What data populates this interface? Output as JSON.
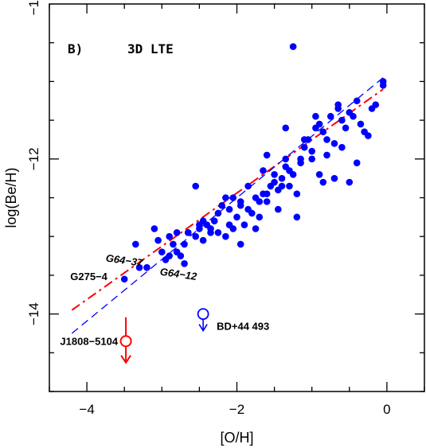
{
  "chart_data": {
    "type": "scatter",
    "title": "",
    "panel_label": "B)",
    "model_label": "3D LTE",
    "xlabel": "[O/H]",
    "ylabel": "log(Be/H)",
    "xlim": [
      -4.5,
      0.5
    ],
    "ylim": [
      -15.0,
      -10.0
    ],
    "x_ticks": [
      -4,
      -2,
      0
    ],
    "x_tick_labels": [
      "−4",
      "−2",
      "0"
    ],
    "y_ticks": [
      -14,
      -12,
      -10
    ],
    "y_tick_labels": [
      "−14",
      "−12",
      "−10"
    ],
    "grid": false,
    "colors": {
      "points": "#0000ff",
      "fit_red": "#ff0000",
      "fit_blue": "#0000ff",
      "axes": "#000000"
    },
    "series": [
      {
        "marker": "filled-circle",
        "color": "#0000ff",
        "x": [
          -3.5,
          -3.3,
          -3.2,
          -3.1,
          -3.0,
          -2.95,
          -2.9,
          -2.85,
          -2.8,
          -2.75,
          -2.7,
          -2.7,
          -2.65,
          -2.55,
          -2.5,
          -2.45,
          -2.45,
          -2.4,
          -2.35,
          -2.3,
          -2.25,
          -2.2,
          -2.15,
          -2.1,
          -2.05,
          -2.0,
          -1.95,
          -1.95,
          -1.9,
          -1.85,
          -1.8,
          -1.75,
          -1.7,
          -1.65,
          -1.6,
          -1.55,
          -1.5,
          -1.45,
          -1.45,
          -1.4,
          -1.35,
          -1.3,
          -1.25,
          -1.2,
          -1.15,
          -1.1,
          -1.05,
          -1.0,
          -0.95,
          -0.9,
          -0.85,
          -0.8,
          -0.75,
          -0.7,
          -0.65,
          -0.6,
          -0.55,
          -0.5,
          -0.45,
          -0.4,
          -0.35,
          -0.3,
          -0.25,
          -0.2,
          -0.15,
          -0.05,
          -0.05,
          -3.35,
          -3.05,
          -2.9,
          -2.8,
          -2.65,
          -2.5,
          -2.35,
          -2.25,
          -2.1,
          -2.05,
          -1.95,
          -1.85,
          -1.75,
          -1.7,
          -1.65,
          -1.6,
          -1.5,
          -1.4,
          -1.35,
          -1.3,
          -1.2,
          -1.15,
          -1.1,
          -1.0,
          -0.9,
          -0.8,
          -0.7,
          -0.6,
          -0.5,
          -0.4,
          -1.25,
          -1.35,
          -0.65,
          -0.95,
          -0.85,
          -2.55,
          -2.15,
          -1.6
        ],
        "y": [
          -13.55,
          -13.4,
          -13.4,
          -12.9,
          -13.2,
          -13.3,
          -13.0,
          -13.1,
          -12.95,
          -13.25,
          -13.35,
          -13.1,
          -12.95,
          -13.0,
          -12.9,
          -12.8,
          -13.05,
          -12.85,
          -12.95,
          -12.8,
          -12.95,
          -12.6,
          -13.0,
          -12.85,
          -12.5,
          -12.75,
          -12.6,
          -13.1,
          -12.85,
          -12.65,
          -12.7,
          -12.9,
          -12.55,
          -12.45,
          -12.55,
          -12.35,
          -12.2,
          -12.4,
          -12.65,
          -12.25,
          -12.1,
          -12.35,
          -12.2,
          -12.45,
          -12.05,
          -11.85,
          -11.75,
          -12.0,
          -11.6,
          -11.55,
          -11.65,
          -11.75,
          -11.45,
          -11.8,
          -11.35,
          -11.5,
          -11.6,
          -11.4,
          -11.45,
          -11.25,
          -11.55,
          -11.65,
          -11.7,
          -11.35,
          -11.3,
          -11.05,
          -11.0,
          -13.1,
          -13.05,
          -13.25,
          -13.2,
          -12.95,
          -12.85,
          -12.9,
          -12.7,
          -12.65,
          -12.9,
          -12.55,
          -12.35,
          -12.5,
          -12.75,
          -12.15,
          -12.45,
          -12.3,
          -12.35,
          -12.0,
          -12.15,
          -12.75,
          -12.0,
          -11.75,
          -11.9,
          -12.2,
          -11.95,
          -12.25,
          -11.85,
          -12.3,
          -12.05,
          -10.55,
          -11.6,
          -11.3,
          -11.45,
          -12.3,
          -12.35,
          -12.5,
          -11.95
        ]
      }
    ],
    "fit_lines": [
      {
        "style": "dash-dot",
        "color": "#ff0000",
        "x": [
          -4.2,
          -0.05
        ],
        "y": [
          -13.95,
          -11.1
        ]
      },
      {
        "style": "dashed",
        "color": "#0000ff",
        "x": [
          -4.2,
          -0.05
        ],
        "y": [
          -14.25,
          -10.95
        ]
      }
    ],
    "annotations": [
      {
        "text": "G64−37",
        "x": -3.75,
        "y": -13.3,
        "italic": true
      },
      {
        "text": "G275−4",
        "x": -4.2,
        "y": -13.5,
        "italic": false
      },
      {
        "text": "G64−12",
        "x": -3.0,
        "y": -13.5,
        "italic": true
      }
    ],
    "upper_limits": [
      {
        "label": "J1808−5104",
        "x": -3.48,
        "y": -14.35,
        "color": "#ff0000"
      },
      {
        "label": "BD+44 493",
        "x": -2.45,
        "y": -14.0,
        "color": "#0000ff"
      }
    ]
  }
}
